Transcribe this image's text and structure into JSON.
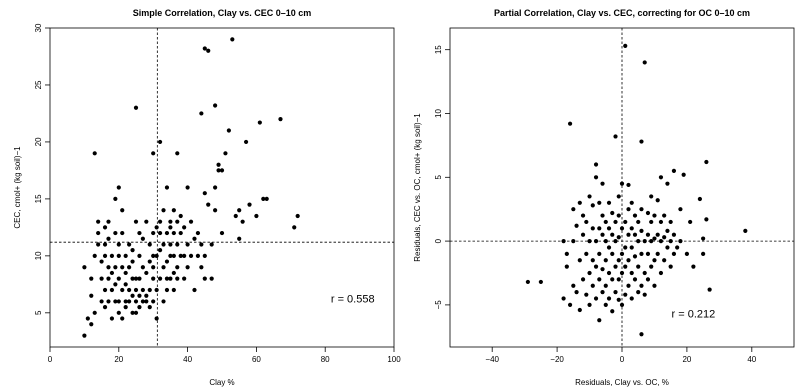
{
  "chart_data": [
    {
      "type": "scatter",
      "title": "Simple Correlation, Clay vs. CEC 0–10 cm",
      "xlabel": "Clay %",
      "ylabel": "CEC, cmol+ (kg soil)−1",
      "xlim": [
        0,
        100
      ],
      "ylim": [
        2,
        30
      ],
      "xticks": [
        0,
        20,
        40,
        60,
        80,
        100
      ],
      "yticks": [
        5,
        10,
        15,
        20,
        25,
        30
      ],
      "xtick_labels": [
        "0",
        "20",
        "40",
        "60",
        "80",
        "100"
      ],
      "ytick_labels": [
        "5",
        "10",
        "15",
        "20",
        "25",
        "30"
      ],
      "vline": 31.2,
      "hline": 11.2,
      "annotation": "r = 0.558",
      "annotation_pos": [
        88,
        5.9
      ],
      "points": [
        [
          10,
          3
        ],
        [
          10,
          9
        ],
        [
          11,
          4.5
        ],
        [
          12,
          4
        ],
        [
          12,
          6.5
        ],
        [
          12,
          8
        ],
        [
          13,
          5
        ],
        [
          13,
          10
        ],
        [
          13,
          19
        ],
        [
          14,
          11
        ],
        [
          14,
          12
        ],
        [
          14,
          13
        ],
        [
          15,
          6
        ],
        [
          15,
          8
        ],
        [
          15,
          9.5
        ],
        [
          16,
          5.5
        ],
        [
          16,
          7
        ],
        [
          16,
          10
        ],
        [
          16,
          11
        ],
        [
          16,
          12.5
        ],
        [
          17,
          6
        ],
        [
          17,
          8
        ],
        [
          17,
          9
        ],
        [
          17,
          11.5
        ],
        [
          17,
          13
        ],
        [
          18,
          4.5
        ],
        [
          18,
          7
        ],
        [
          18,
          8.5
        ],
        [
          18,
          10
        ],
        [
          19,
          6
        ],
        [
          19,
          7.5
        ],
        [
          19,
          9
        ],
        [
          19,
          12
        ],
        [
          19,
          15
        ],
        [
          20,
          5
        ],
        [
          20,
          6
        ],
        [
          20,
          8
        ],
        [
          20,
          10
        ],
        [
          20,
          11
        ],
        [
          20,
          16
        ],
        [
          21,
          4.5
        ],
        [
          21,
          7
        ],
        [
          21,
          9
        ],
        [
          21,
          12
        ],
        [
          21,
          14
        ],
        [
          22,
          5.5
        ],
        [
          22,
          6
        ],
        [
          22,
          7.5
        ],
        [
          22,
          8.5
        ],
        [
          22,
          10
        ],
        [
          23,
          6
        ],
        [
          23,
          7
        ],
        [
          23,
          9
        ],
        [
          23,
          11
        ],
        [
          24,
          5
        ],
        [
          24,
          6.5
        ],
        [
          24,
          8
        ],
        [
          24,
          9.5
        ],
        [
          24,
          10.5
        ],
        [
          25,
          5
        ],
        [
          25,
          6
        ],
        [
          25,
          7
        ],
        [
          25,
          8
        ],
        [
          25,
          13
        ],
        [
          25,
          23
        ],
        [
          26,
          5.5
        ],
        [
          26,
          6.5
        ],
        [
          26,
          8
        ],
        [
          26,
          10
        ],
        [
          26,
          12
        ],
        [
          27,
          6
        ],
        [
          27,
          7
        ],
        [
          27,
          9
        ],
        [
          27,
          11.5
        ],
        [
          28,
          6
        ],
        [
          28,
          6.5
        ],
        [
          28,
          8.5
        ],
        [
          28,
          13
        ],
        [
          29,
          5.5
        ],
        [
          29,
          7
        ],
        [
          29,
          9.5
        ],
        [
          29,
          11
        ],
        [
          30,
          6
        ],
        [
          30,
          8
        ],
        [
          30,
          9
        ],
        [
          30,
          10
        ],
        [
          30,
          12
        ],
        [
          30,
          19
        ],
        [
          31,
          4.5
        ],
        [
          31,
          7
        ],
        [
          31,
          10
        ],
        [
          31,
          12.5
        ],
        [
          32,
          8
        ],
        [
          32,
          10.5
        ],
        [
          32,
          12
        ],
        [
          32,
          13
        ],
        [
          32,
          20
        ],
        [
          33,
          6
        ],
        [
          33,
          9
        ],
        [
          33,
          11
        ],
        [
          33,
          14
        ],
        [
          34,
          7
        ],
        [
          34,
          8
        ],
        [
          34,
          9.5
        ],
        [
          34,
          12
        ],
        [
          34,
          16
        ],
        [
          35,
          8
        ],
        [
          35,
          10
        ],
        [
          35,
          11
        ],
        [
          35,
          12.5
        ],
        [
          35,
          13
        ],
        [
          36,
          7
        ],
        [
          36,
          8.5
        ],
        [
          36,
          10
        ],
        [
          36,
          12
        ],
        [
          36,
          14
        ],
        [
          37,
          8
        ],
        [
          37,
          9
        ],
        [
          37,
          11
        ],
        [
          37,
          13
        ],
        [
          37,
          19
        ],
        [
          38,
          10
        ],
        [
          38,
          12
        ],
        [
          38,
          13.5
        ],
        [
          39,
          8
        ],
        [
          39,
          10
        ],
        [
          39,
          12.5
        ],
        [
          40,
          9
        ],
        [
          40,
          11
        ],
        [
          40,
          16
        ],
        [
          41,
          10
        ],
        [
          41,
          13
        ],
        [
          42,
          7
        ],
        [
          42,
          11.5
        ],
        [
          43,
          10
        ],
        [
          43,
          12
        ],
        [
          44,
          9
        ],
        [
          44,
          11
        ],
        [
          44,
          22.5
        ],
        [
          45,
          8
        ],
        [
          45,
          10
        ],
        [
          45,
          15.5
        ],
        [
          45,
          28.2
        ],
        [
          46,
          14.5
        ],
        [
          46,
          28
        ],
        [
          47,
          8
        ],
        [
          47,
          11
        ],
        [
          48,
          14
        ],
        [
          48,
          16
        ],
        [
          48,
          23.2
        ],
        [
          49,
          17.5
        ],
        [
          49,
          18
        ],
        [
          50,
          12
        ],
        [
          50,
          17.5
        ],
        [
          51,
          19
        ],
        [
          52,
          21
        ],
        [
          53,
          29
        ],
        [
          54,
          13.5
        ],
        [
          55,
          11.5
        ],
        [
          55,
          14
        ],
        [
          56,
          13
        ],
        [
          57,
          20
        ],
        [
          58,
          14.5
        ],
        [
          60,
          13.5
        ],
        [
          61,
          21.7
        ],
        [
          62,
          15
        ],
        [
          63,
          15
        ],
        [
          67,
          22
        ],
        [
          71,
          12.5
        ],
        [
          72,
          13.5
        ]
      ]
    },
    {
      "type": "scatter",
      "title": "Partial Correlation, Clay vs. CEC, correcting for OC 0–10 cm",
      "xlabel": "Residuals, Clay vs. OC, %",
      "ylabel": "Residuals, CEC vs. OC, cmol+ (kg soil)−1",
      "xlim": [
        -53,
        53
      ],
      "ylim": [
        -8.3,
        16.7
      ],
      "xticks": [
        -40,
        -20,
        0,
        20,
        40
      ],
      "yticks": [
        -5,
        0,
        5,
        10,
        15
      ],
      "xtick_labels": [
        "−40",
        "−20",
        "0",
        "20",
        "40"
      ],
      "ytick_labels": [
        "−5",
        "0",
        "5",
        "10",
        "15"
      ],
      "vline": 0,
      "hline": 0,
      "annotation": "r = 0.212",
      "annotation_pos": [
        22,
        -6
      ],
      "points": [
        [
          -29,
          -3.2
        ],
        [
          -25,
          -3.2
        ],
        [
          -18,
          -4.5
        ],
        [
          -18,
          0
        ],
        [
          -17,
          -2
        ],
        [
          -17,
          -1
        ],
        [
          -16,
          -5
        ],
        [
          -16,
          9.2
        ],
        [
          -15,
          -3.5
        ],
        [
          -15,
          0
        ],
        [
          -15,
          2.5
        ],
        [
          -14,
          -4
        ],
        [
          -14,
          1.2
        ],
        [
          -13,
          -5.4
        ],
        [
          -13,
          -1.5
        ],
        [
          -13,
          3
        ],
        [
          -12,
          -3
        ],
        [
          -12,
          0.5
        ],
        [
          -12,
          2
        ],
        [
          -11,
          -4.2
        ],
        [
          -11,
          -1
        ],
        [
          -11,
          1.5
        ],
        [
          -10,
          -5
        ],
        [
          -10,
          -2.5
        ],
        [
          -10,
          0
        ],
        [
          -10,
          3.5
        ],
        [
          -9,
          -3.5
        ],
        [
          -9,
          -1.5
        ],
        [
          -9,
          1
        ],
        [
          -9,
          2.8
        ],
        [
          -8,
          -4.5
        ],
        [
          -8,
          -2
        ],
        [
          -8,
          0
        ],
        [
          -8,
          5
        ],
        [
          -8,
          6
        ],
        [
          -7,
          -6.2
        ],
        [
          -7,
          -3
        ],
        [
          -7,
          -1
        ],
        [
          -7,
          1
        ],
        [
          -7,
          3
        ],
        [
          -6,
          -4
        ],
        [
          -6,
          -2.2
        ],
        [
          -6,
          0.5
        ],
        [
          -6,
          2
        ],
        [
          -6,
          4.5
        ],
        [
          -5,
          -5
        ],
        [
          -5,
          -3.5
        ],
        [
          -5,
          -1.5
        ],
        [
          -5,
          0
        ],
        [
          -5,
          1.5
        ],
        [
          -4,
          -4.5
        ],
        [
          -4,
          -2.5
        ],
        [
          -4,
          -0.5
        ],
        [
          -4,
          1
        ],
        [
          -4,
          3
        ],
        [
          -3,
          -5.5
        ],
        [
          -3,
          -3
        ],
        [
          -3,
          -1
        ],
        [
          -3,
          0.5
        ],
        [
          -3,
          2.2
        ],
        [
          -2,
          -4
        ],
        [
          -2,
          -2
        ],
        [
          -2,
          0
        ],
        [
          -2,
          1.5
        ],
        [
          -2,
          8.2
        ],
        [
          -1,
          -4.6
        ],
        [
          -1,
          -3
        ],
        [
          -1,
          -1.5
        ],
        [
          -1,
          0.3
        ],
        [
          -1,
          2
        ],
        [
          -1,
          3.5
        ],
        [
          0,
          -5
        ],
        [
          0,
          -2.5
        ],
        [
          0,
          -1
        ],
        [
          0,
          1
        ],
        [
          0,
          4.5
        ],
        [
          1,
          -4.2
        ],
        [
          1,
          -2
        ],
        [
          1,
          -0.5
        ],
        [
          1,
          1.5
        ],
        [
          1,
          15.3
        ],
        [
          2,
          -3.5
        ],
        [
          2,
          -1.5
        ],
        [
          2,
          0.5
        ],
        [
          2,
          2.5
        ],
        [
          2,
          4.4
        ],
        [
          3,
          -4.5
        ],
        [
          3,
          -2.5
        ],
        [
          3,
          -0.5
        ],
        [
          3,
          1
        ],
        [
          3,
          3
        ],
        [
          4,
          -3
        ],
        [
          4,
          -1.2
        ],
        [
          4,
          0.5
        ],
        [
          4,
          2
        ],
        [
          5,
          -4
        ],
        [
          5,
          -2
        ],
        [
          5,
          0
        ],
        [
          5,
          1.5
        ],
        [
          6,
          -7.3
        ],
        [
          6,
          -3.5
        ],
        [
          6,
          -1
        ],
        [
          6,
          0.8
        ],
        [
          6,
          2.5
        ],
        [
          6,
          7.8
        ],
        [
          7,
          -2.5
        ],
        [
          7,
          0
        ],
        [
          7,
          14
        ],
        [
          7,
          -4.2
        ],
        [
          8,
          -3
        ],
        [
          8,
          -1
        ],
        [
          8,
          0.5
        ],
        [
          8,
          2.2
        ],
        [
          9,
          -2
        ],
        [
          9,
          0
        ],
        [
          9,
          1.5
        ],
        [
          9,
          3.5
        ],
        [
          10,
          -1.5
        ],
        [
          10,
          0.2
        ],
        [
          10,
          2
        ],
        [
          10,
          -3.5
        ],
        [
          11,
          -1
        ],
        [
          11,
          0.5
        ],
        [
          11,
          3.2
        ],
        [
          12,
          -2.5
        ],
        [
          12,
          0
        ],
        [
          12,
          1.5
        ],
        [
          12,
          5
        ],
        [
          13,
          -1.5
        ],
        [
          13,
          0.3
        ],
        [
          13,
          2
        ],
        [
          14,
          -0.5
        ],
        [
          14,
          0.8
        ],
        [
          14,
          4.5
        ],
        [
          15,
          -2
        ],
        [
          15,
          0
        ],
        [
          15,
          1.5
        ],
        [
          16,
          -1
        ],
        [
          16,
          0.5
        ],
        [
          16,
          5.5
        ],
        [
          17,
          -0.5
        ],
        [
          18,
          0
        ],
        [
          18,
          2.5
        ],
        [
          19,
          5.2
        ],
        [
          20,
          -1
        ],
        [
          21,
          1.5
        ],
        [
          22,
          -2
        ],
        [
          24,
          3.3
        ],
        [
          25,
          -1
        ],
        [
          25,
          0.2
        ],
        [
          26,
          6.2
        ],
        [
          26,
          1.7
        ],
        [
          27,
          -3.8
        ],
        [
          38,
          0.8
        ]
      ]
    }
  ]
}
